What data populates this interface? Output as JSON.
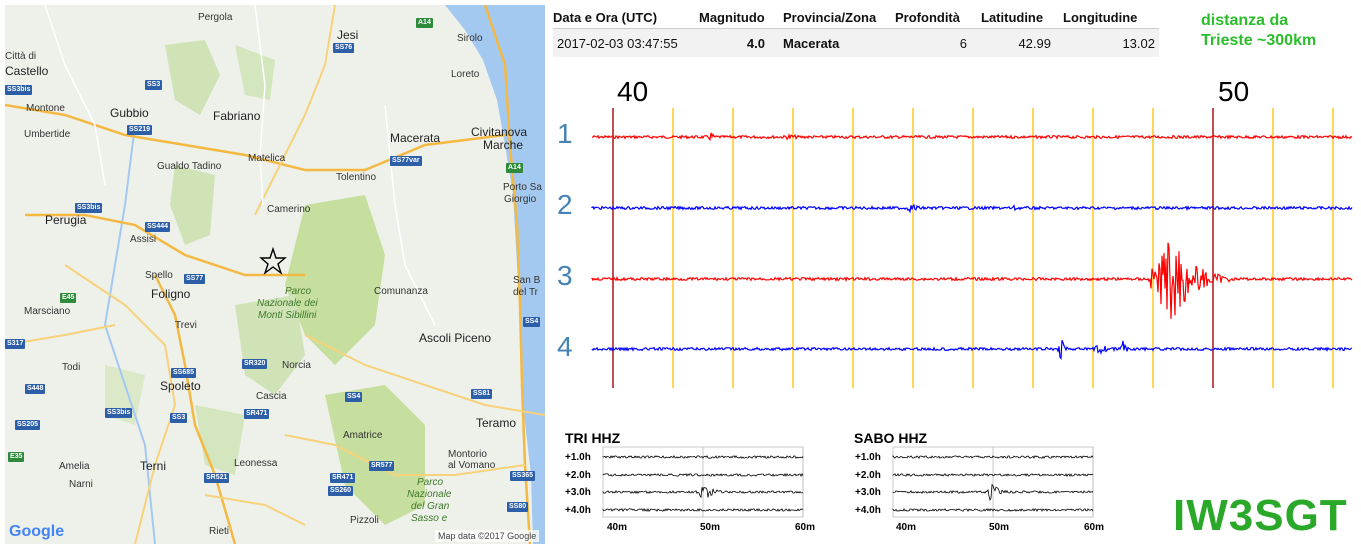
{
  "map": {
    "google_logo": "Google",
    "attribution": "Map data ©2017 Google",
    "cities": [
      "Pergola",
      "Jesi",
      "Sirolo",
      "Città di",
      "Castello",
      "Loreto",
      "Montone",
      "Gubbio",
      "Umbertide",
      "Fabriano",
      "Macerata",
      "Civitanova",
      "Marche",
      "Matelica",
      "Gualdo Tadino",
      "Tolentino",
      "Porto Sa",
      "Giorgio",
      "Perugia",
      "Camerino",
      "Assisi",
      "Spello",
      "San B",
      "del Tr",
      "Foligno",
      "Comunanza",
      "Marsciano",
      "Trevi",
      "Ascoli Piceno",
      "Todi",
      "Norcia",
      "Spoleto",
      "Cascia",
      "Teramo",
      "Amatrice",
      "Montorio",
      "al Vomano",
      "Terni",
      "Amelia",
      "Leonessa",
      "Narni",
      "Rieti",
      "Pizzoli"
    ],
    "parks": [
      "Parco",
      "Nazionale dei",
      "Monti Sibillini",
      "Parco",
      "Nazionale",
      "del Gran",
      "Sasso e"
    ],
    "shields": [
      "A14",
      "SS76",
      "SS3bis",
      "SS3",
      "SS219",
      "SS77var",
      "A14",
      "SS3bis",
      "SS444",
      "SS77",
      "E45",
      "SS4",
      "S317",
      "SS685",
      "SR320",
      "S448",
      "SS3bis",
      "SS3",
      "SR471",
      "SS4",
      "SS81",
      "SS205",
      "E35",
      "SR521",
      "SR471",
      "SR577",
      "SS260",
      "SS365",
      "SS80"
    ]
  },
  "quake_table": {
    "headers": [
      "Data e Ora (UTC)",
      "Magnitudo",
      "Provincia/Zona",
      "Profondità",
      "Latitudine",
      "Longitudine"
    ],
    "row": {
      "datetime": "2017-02-03 03:47:55",
      "magnitude": "4.0",
      "zone": "Macerata",
      "depth": "6",
      "latitude": "42.99",
      "longitude": "13.02"
    }
  },
  "distance_note": {
    "line1": "distanza da",
    "line2": "Trieste ~300km"
  },
  "seismogram": {
    "tick_labels": {
      "left": "40",
      "right": "50"
    },
    "trace_numbers": [
      "1",
      "2",
      "3",
      "4"
    ],
    "trace_colors": [
      "#ff0000",
      "#0000ff",
      "#ff0000",
      "#0000ff"
    ],
    "major_line_color": "#b22222",
    "minor_line_color": "#ffc000"
  },
  "helicorders": [
    {
      "title": "TRI HHZ",
      "rows": [
        "+1.0h",
        "+2.0h",
        "+3.0h",
        "+4.0h"
      ],
      "x_labels": [
        "40m",
        "50m",
        "60m"
      ]
    },
    {
      "title": "SABO HHZ",
      "rows": [
        "+1.0h",
        "+2.0h",
        "+3.0h",
        "+4.0h"
      ],
      "x_labels": [
        "40m",
        "50m",
        "60m"
      ]
    }
  ],
  "callsign": "IW3SGT"
}
